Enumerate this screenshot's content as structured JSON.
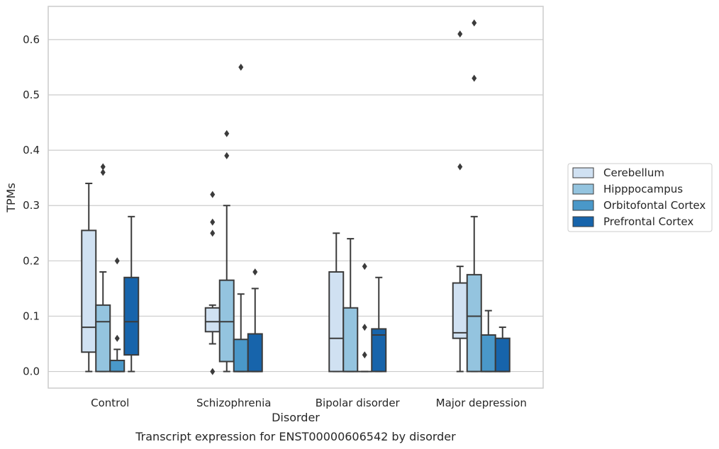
{
  "caption": "Transcript expression for ENST00000606542 by disorder",
  "chart_data": {
    "type": "box",
    "title": "",
    "xlabel": "Disorder",
    "ylabel": "TPMs",
    "ylim": [
      -0.03,
      0.66
    ],
    "yticks": [
      0.0,
      0.1,
      0.2,
      0.3,
      0.4,
      0.5,
      0.6
    ],
    "ytick_labels": [
      "0.0",
      "0.1",
      "0.2",
      "0.3",
      "0.4",
      "0.5",
      "0.6"
    ],
    "grid": "horizontal",
    "legend_position": "right",
    "categories": [
      "Control",
      "Schizophrenia",
      "Bipolar disorder",
      "Major depression"
    ],
    "series": [
      {
        "name": "Cerebellum",
        "color": "#d0e1f2",
        "boxes": [
          {
            "whisker_low": 0.0,
            "q1": 0.035,
            "median": 0.08,
            "q3": 0.255,
            "whisker_high": 0.34,
            "outliers": []
          },
          {
            "whisker_low": 0.05,
            "q1": 0.072,
            "median": 0.09,
            "q3": 0.115,
            "whisker_high": 0.12,
            "outliers": [
              0.0,
              0.25,
              0.27,
              0.32
            ]
          },
          {
            "whisker_low": 0.0,
            "q1": 0.0,
            "median": 0.06,
            "q3": 0.18,
            "whisker_high": 0.25,
            "outliers": []
          },
          {
            "whisker_low": 0.0,
            "q1": 0.06,
            "median": 0.07,
            "q3": 0.16,
            "whisker_high": 0.19,
            "outliers": [
              0.37,
              0.61
            ]
          }
        ]
      },
      {
        "name": "Hipppocampus",
        "color": "#94c4df",
        "boxes": [
          {
            "whisker_low": 0.0,
            "q1": 0.0,
            "median": 0.09,
            "q3": 0.12,
            "whisker_high": 0.18,
            "outliers": [
              0.36,
              0.37
            ]
          },
          {
            "whisker_low": 0.0,
            "q1": 0.018,
            "median": 0.09,
            "q3": 0.165,
            "whisker_high": 0.3,
            "outliers": [
              0.39,
              0.43
            ]
          },
          {
            "whisker_low": 0.0,
            "q1": 0.0,
            "median": 0.0,
            "q3": 0.115,
            "whisker_high": 0.24,
            "outliers": []
          },
          {
            "whisker_low": 0.0,
            "q1": 0.0,
            "median": 0.1,
            "q3": 0.175,
            "whisker_high": 0.28,
            "outliers": [
              0.53,
              0.63
            ]
          }
        ]
      },
      {
        "name": "Orbitofontal Cortex",
        "color": "#4a98c9",
        "boxes": [
          {
            "whisker_low": 0.0,
            "q1": 0.0,
            "median": 0.0,
            "q3": 0.02,
            "whisker_high": 0.04,
            "outliers": [
              0.06,
              0.2
            ]
          },
          {
            "whisker_low": 0.0,
            "q1": 0.0,
            "median": 0.0,
            "q3": 0.058,
            "whisker_high": 0.14,
            "outliers": [
              0.55
            ]
          },
          {
            "whisker_low": 0.0,
            "q1": 0.0,
            "median": 0.0,
            "q3": 0.0,
            "whisker_high": 0.0,
            "outliers": [
              0.03,
              0.08,
              0.19
            ]
          },
          {
            "whisker_low": 0.0,
            "q1": 0.0,
            "median": 0.0,
            "q3": 0.066,
            "whisker_high": 0.11,
            "outliers": []
          }
        ]
      },
      {
        "name": "Prefrontal Cortex",
        "color": "#1764ab",
        "boxes": [
          {
            "whisker_low": 0.0,
            "q1": 0.03,
            "median": 0.09,
            "q3": 0.17,
            "whisker_high": 0.28,
            "outliers": []
          },
          {
            "whisker_low": 0.0,
            "q1": 0.0,
            "median": 0.0,
            "q3": 0.068,
            "whisker_high": 0.15,
            "outliers": [
              0.18
            ]
          },
          {
            "whisker_low": 0.0,
            "q1": 0.0,
            "median": 0.066,
            "q3": 0.077,
            "whisker_high": 0.17,
            "outliers": []
          },
          {
            "whisker_low": 0.0,
            "q1": 0.0,
            "median": 0.0,
            "q3": 0.06,
            "whisker_high": 0.08,
            "outliers": []
          }
        ]
      }
    ]
  }
}
